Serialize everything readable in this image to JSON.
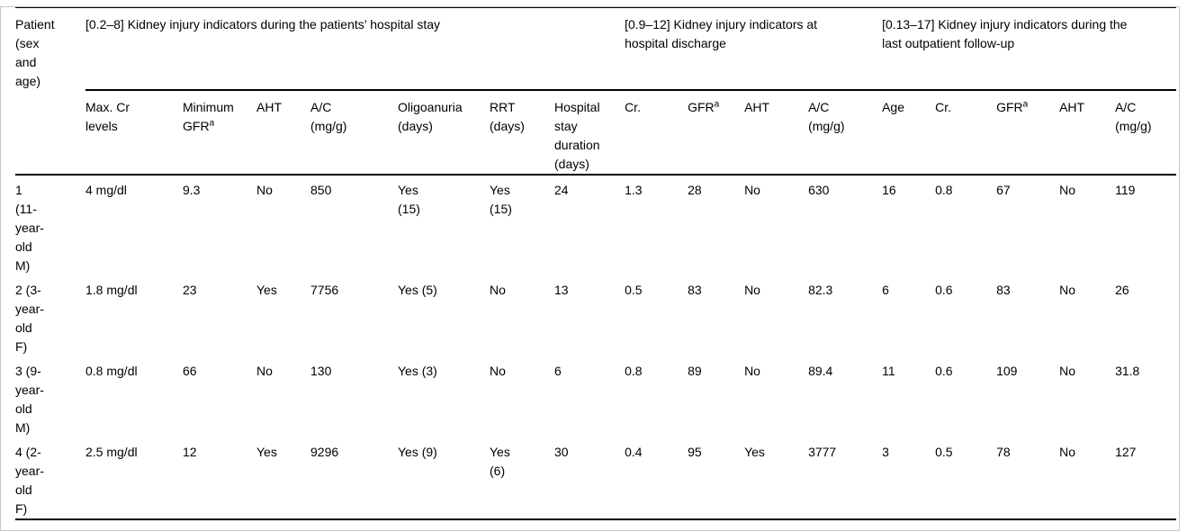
{
  "table": {
    "corner_header": {
      "label": "Patient\n(sex\nand\nage)"
    },
    "groups": [
      {
        "label": "[0.2–8] Kidney injury indicators during the patients’ hospital stay",
        "span": 7
      },
      {
        "label": "[0.9–12] Kidney injury indicators at\nhospital discharge",
        "span": 4
      },
      {
        "label": "[0.13–17] Kidney injury indicators during the\nlast outpatient follow-up",
        "span": 5
      }
    ],
    "columns": [
      {
        "label": "Max. Cr\nlevels"
      },
      {
        "label": "Minimum\nGFR",
        "sup": "a"
      },
      {
        "label": "AHT"
      },
      {
        "label": "A/C\n(mg/g)"
      },
      {
        "label": "Oligoanuria\n(days)"
      },
      {
        "label": "RRT\n(days)"
      },
      {
        "label": "Hospital\nstay\nduration\n(days)"
      },
      {
        "label": "Cr."
      },
      {
        "label": "GFR",
        "sup": "a"
      },
      {
        "label": "AHT"
      },
      {
        "label": "A/C\n(mg/g)"
      },
      {
        "label": "Age"
      },
      {
        "label": "Cr."
      },
      {
        "label": "GFR",
        "sup": "a"
      },
      {
        "label": "AHT"
      },
      {
        "label": "A/C\n(mg/g)"
      }
    ],
    "rows": [
      {
        "patient": "1\n(11-\nyear-\nold\nM)",
        "cells": [
          "4 mg/dl",
          "9.3",
          "No",
          "850",
          "Yes\n(15)",
          "Yes\n(15)",
          "24",
          "1.3",
          "28",
          "No",
          "630",
          "16",
          "0.8",
          "67",
          "No",
          "119"
        ]
      },
      {
        "patient": "2 (3-\nyear-\nold\nF)",
        "cells": [
          "1.8 mg/dl",
          "23",
          "Yes",
          "7756",
          "Yes (5)",
          "No",
          "13",
          "0.5",
          "83",
          "No",
          "82.3",
          "6",
          "0.6",
          "83",
          "No",
          "26"
        ]
      },
      {
        "patient": "3 (9-\nyear-\nold\nM)",
        "cells": [
          "0.8 mg/dl",
          "66",
          "No",
          "130",
          "Yes (3)",
          "No",
          "6",
          "0.8",
          "89",
          "No",
          "89.4",
          "11",
          "0.6",
          "109",
          "No",
          "31.8"
        ]
      },
      {
        "patient": "4 (2-\nyear-\nold\nF)",
        "cells": [
          "2.5 mg/dl",
          "12",
          "Yes",
          "9296",
          "Yes (9)",
          "Yes\n(6)",
          "30",
          "0.4",
          "95",
          "Yes",
          "3777",
          "3",
          "0.5",
          "78",
          "No",
          "127"
        ]
      }
    ]
  },
  "colors": {
    "text": "#000000",
    "background": "#ffffff",
    "rule": "#000000",
    "frame": "#c6c6c6"
  }
}
